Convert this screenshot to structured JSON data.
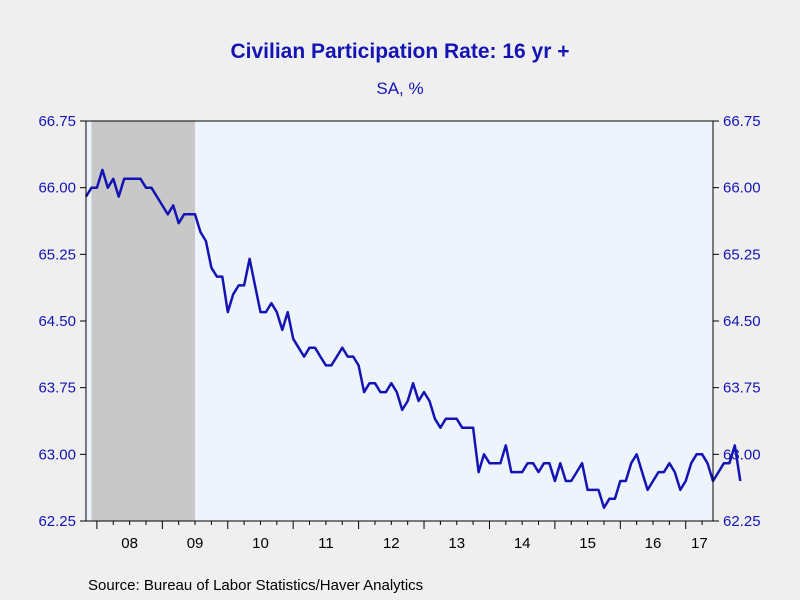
{
  "title": "Civilian Participation Rate: 16 yr +",
  "subtitle": "SA, %",
  "source": "Source:  Bureau of Labor Statistics/Haver Analytics",
  "colors": {
    "line": "#1414b4",
    "plot_bg": "#eef4fc",
    "recession": "#c8c8c8",
    "axis_text": "#1414b4"
  },
  "chart_data": {
    "type": "line",
    "title": "Civilian Participation Rate: 16 yr +",
    "subtitle": "SA, %",
    "x_start": "2007-11",
    "x_end": "2017-06",
    "ylim": [
      62.25,
      66.75
    ],
    "y_ticks": [
      "66.75",
      "66.00",
      "65.25",
      "64.50",
      "63.75",
      "63.00",
      "62.25"
    ],
    "x_tick_labels": [
      "08",
      "09",
      "10",
      "11",
      "12",
      "13",
      "14",
      "15",
      "16",
      "17"
    ],
    "recession": {
      "start": "2007-12",
      "end": "2009-06"
    },
    "series": [
      {
        "start": "2007-11",
        "values": [
          65.9,
          66.0,
          66.0,
          66.2,
          66.0,
          66.1,
          65.9,
          66.1,
          66.1,
          66.1,
          66.1,
          66.0,
          66.0,
          65.9,
          65.8,
          65.7,
          65.8,
          65.6,
          65.7,
          65.7,
          65.7,
          65.5,
          65.4,
          65.1,
          65.0,
          65.0,
          64.6,
          64.8,
          64.9,
          64.9,
          65.2,
          64.9,
          64.6,
          64.6,
          64.7,
          64.6,
          64.4,
          64.6,
          64.3,
          64.2,
          64.1,
          64.2,
          64.2,
          64.1,
          64.0,
          64.0,
          64.1,
          64.2,
          64.1,
          64.1,
          64.0,
          63.7,
          63.8,
          63.8,
          63.7,
          63.7,
          63.8,
          63.7,
          63.5,
          63.6,
          63.8,
          63.6,
          63.7,
          63.6,
          63.4,
          63.3,
          63.4,
          63.4,
          63.4,
          63.3,
          63.3,
          63.3,
          62.8,
          63.0,
          62.9,
          62.9,
          62.9,
          63.1,
          62.8,
          62.8,
          62.8,
          62.9,
          62.9,
          62.8,
          62.9,
          62.9,
          62.7,
          62.9,
          62.7,
          62.7,
          62.8,
          62.9,
          62.6,
          62.6,
          62.6,
          62.4,
          62.5,
          62.5,
          62.7,
          62.7,
          62.9,
          63.0,
          62.8,
          62.6,
          62.7,
          62.8,
          62.8,
          62.9,
          62.8,
          62.6,
          62.7,
          62.9,
          63.0,
          63.0,
          62.9,
          62.7,
          62.8,
          62.9,
          62.9,
          63.1,
          62.7
        ]
      }
    ],
    "grid": false
  }
}
